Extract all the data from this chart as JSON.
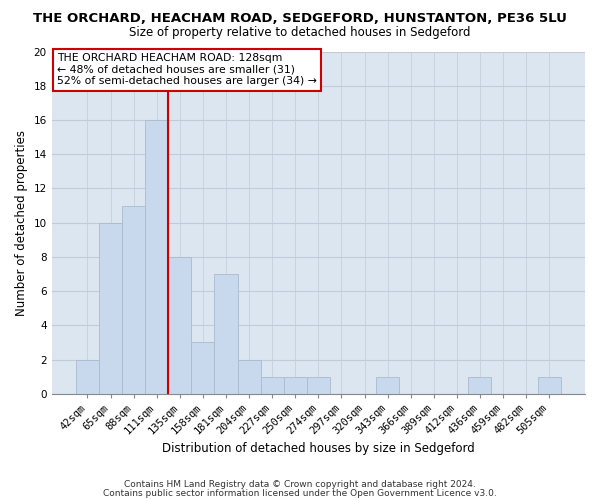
{
  "title": "THE ORCHARD, HEACHAM ROAD, SEDGEFORD, HUNSTANTON, PE36 5LU",
  "subtitle": "Size of property relative to detached houses in Sedgeford",
  "xlabel": "Distribution of detached houses by size in Sedgeford",
  "ylabel": "Number of detached properties",
  "bar_labels": [
    "42sqm",
    "65sqm",
    "88sqm",
    "111sqm",
    "135sqm",
    "158sqm",
    "181sqm",
    "204sqm",
    "227sqm",
    "250sqm",
    "274sqm",
    "297sqm",
    "320sqm",
    "343sqm",
    "366sqm",
    "389sqm",
    "412sqm",
    "436sqm",
    "459sqm",
    "482sqm",
    "505sqm"
  ],
  "bar_values": [
    2,
    10,
    11,
    16,
    8,
    3,
    7,
    2,
    1,
    1,
    1,
    0,
    0,
    1,
    0,
    0,
    0,
    1,
    0,
    0,
    1
  ],
  "bar_color": "#c9d9ed",
  "bar_edge_color": "#aabbcc",
  "grid_color": "#c0ccd8",
  "vline_color": "#cc0000",
  "annotation_text": "THE ORCHARD HEACHAM ROAD: 128sqm\n← 48% of detached houses are smaller (31)\n52% of semi-detached houses are larger (34) →",
  "annotation_box_edgecolor": "#cc0000",
  "annotation_box_facecolor": "#ffffff",
  "ylim": [
    0,
    20
  ],
  "yticks": [
    0,
    2,
    4,
    6,
    8,
    10,
    12,
    14,
    16,
    18,
    20
  ],
  "footer_line1": "Contains HM Land Registry data © Crown copyright and database right 2024.",
  "footer_line2": "Contains public sector information licensed under the Open Government Licence v3.0.",
  "bg_color": "#dce6f0",
  "fig_bg_color": "#ffffff",
  "title_fontsize": 9.5,
  "subtitle_fontsize": 8.5,
  "axis_label_fontsize": 8.5,
  "tick_label_fontsize": 7.5,
  "annotation_fontsize": 7.8,
  "footer_fontsize": 6.5
}
